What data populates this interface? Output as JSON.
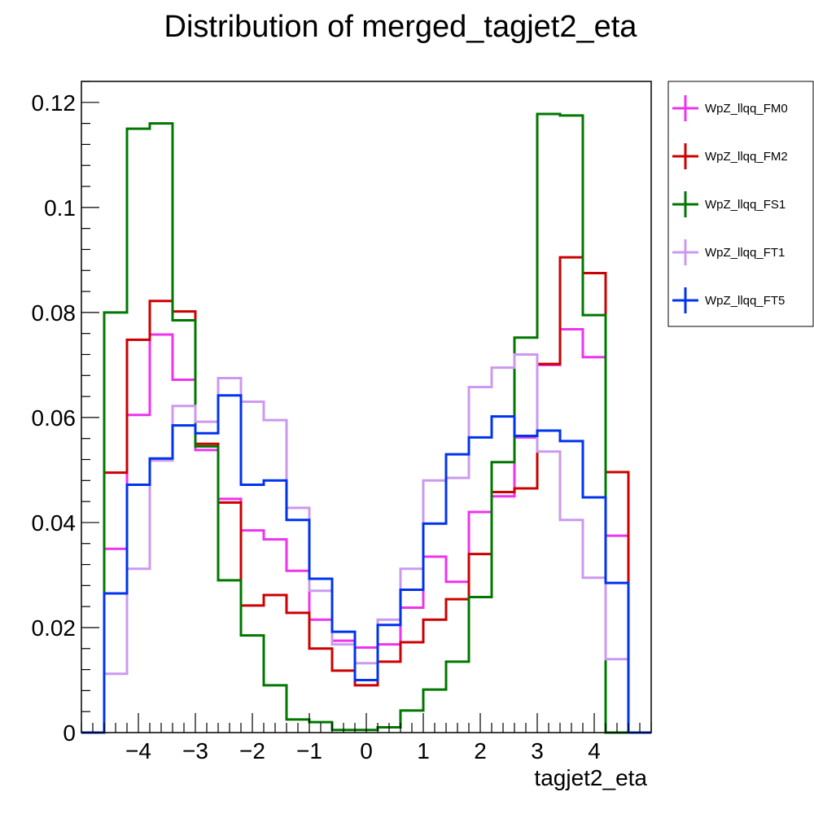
{
  "chart_data": {
    "type": "line",
    "style": "step-histogram",
    "title": "Distribution of merged_tagjet2_eta",
    "xlabel": "tagjet2_eta",
    "ylabel": "",
    "xlim": [
      -5,
      5
    ],
    "ylim": [
      0,
      0.124
    ],
    "x_ticks": [
      {
        "value": -4,
        "label": "−4"
      },
      {
        "value": -3,
        "label": "−3"
      },
      {
        "value": -2,
        "label": "−2"
      },
      {
        "value": -1,
        "label": "−1"
      },
      {
        "value": 0,
        "label": "0"
      },
      {
        "value": 1,
        "label": "1"
      },
      {
        "value": 2,
        "label": "2"
      },
      {
        "value": 3,
        "label": "3"
      },
      {
        "value": 4,
        "label": "4"
      }
    ],
    "y_ticks": [
      {
        "value": 0,
        "label": "0"
      },
      {
        "value": 0.02,
        "label": "0.02"
      },
      {
        "value": 0.04,
        "label": "0.04"
      },
      {
        "value": 0.06,
        "label": "0.06"
      },
      {
        "value": 0.08,
        "label": "0.08"
      },
      {
        "value": 0.1,
        "label": "0.1"
      },
      {
        "value": 0.12,
        "label": "0.12"
      }
    ],
    "bin_edges": [
      -5.0,
      -4.6,
      -4.2,
      -3.8,
      -3.4,
      -3.0,
      -2.6,
      -2.2,
      -1.8,
      -1.4,
      -1.0,
      -0.6,
      -0.2,
      0.2,
      0.6,
      1.0,
      1.4,
      1.8,
      2.2,
      2.6,
      3.0,
      3.4,
      3.8,
      4.2,
      4.6,
      5.0
    ],
    "legend_position": "right-outside-top",
    "grid": false,
    "series": [
      {
        "name": "WpZ_llqq_FM0",
        "color": "#ee33ee",
        "values": [
          0,
          0.035,
          0.0605,
          0.0758,
          0.0672,
          0.0538,
          0.0445,
          0.0385,
          0.0368,
          0.0308,
          0.0215,
          0.0175,
          0.0162,
          0.0168,
          0.0238,
          0.0335,
          0.0287,
          0.042,
          0.045,
          0.0562,
          0.07,
          0.0768,
          0.0715,
          0.0375,
          0
        ]
      },
      {
        "name": "WpZ_llqq_FM2",
        "color": "#cc0000",
        "values": [
          0,
          0.0495,
          0.0748,
          0.0822,
          0.0802,
          0.055,
          0.0438,
          0.0242,
          0.0262,
          0.0228,
          0.016,
          0.0118,
          0.009,
          0.0135,
          0.0172,
          0.0215,
          0.0254,
          0.034,
          0.0458,
          0.0465,
          0.0702,
          0.0905,
          0.0875,
          0.0496,
          0
        ]
      },
      {
        "name": "WpZ_llqq_FS1",
        "color": "#007700",
        "values": [
          0,
          0.08,
          0.115,
          0.116,
          0.0785,
          0.0545,
          0.029,
          0.0185,
          0.009,
          0.0025,
          0.002,
          0.0005,
          0.0005,
          0.001,
          0.0042,
          0.0082,
          0.0135,
          0.0258,
          0.0515,
          0.0752,
          0.1178,
          0.1175,
          0.0795,
          0,
          0
        ]
      },
      {
        "name": "WpZ_llqq_FT1",
        "color": "#cc99ee",
        "values": [
          0,
          0.0112,
          0.0312,
          0.0518,
          0.0622,
          0.0592,
          0.0675,
          0.063,
          0.0595,
          0.0428,
          0.027,
          0.0168,
          0.0132,
          0.0215,
          0.0312,
          0.048,
          0.0485,
          0.0658,
          0.0695,
          0.072,
          0.0535,
          0.0405,
          0.0295,
          0.014,
          0
        ]
      },
      {
        "name": "WpZ_llqq_FT5",
        "color": "#0033ee",
        "values": [
          0,
          0.0265,
          0.0472,
          0.0522,
          0.0585,
          0.057,
          0.0642,
          0.0472,
          0.048,
          0.0405,
          0.0293,
          0.0192,
          0.01,
          0.0205,
          0.0272,
          0.0398,
          0.053,
          0.0562,
          0.0602,
          0.0565,
          0.0575,
          0.0555,
          0.0448,
          0.0285,
          0
        ]
      }
    ]
  }
}
